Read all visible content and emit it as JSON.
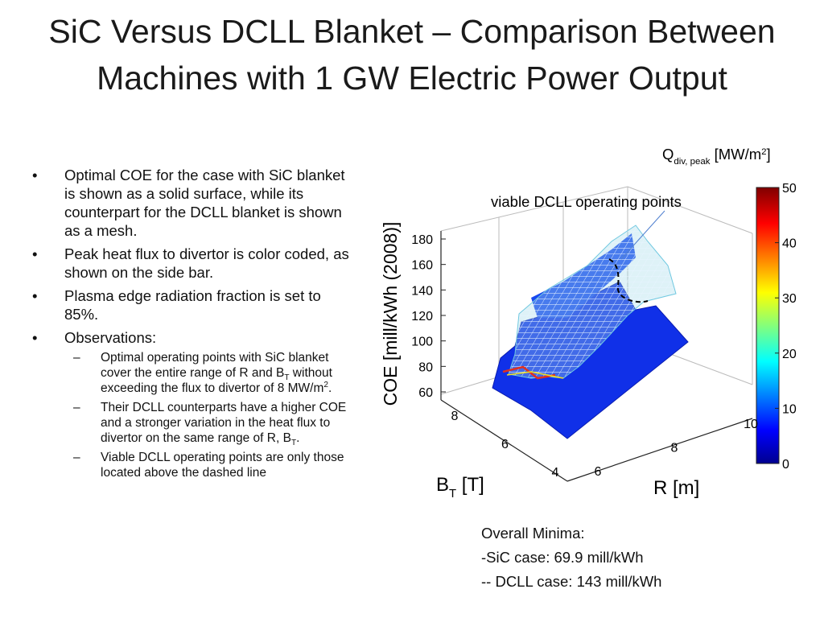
{
  "title": "SiC Versus DCLL Blanket – Comparison Between  Machines with 1 GW Electric Power Output",
  "bullets": [
    {
      "runs": [
        {
          "text": "Optimal COE for the case with SiC blanket is shown as a solid surface, while its counterpart for the DCLL blanket is shown as a mesh."
        }
      ]
    },
    {
      "runs": [
        {
          "text": "Peak heat flux to divertor is color coded, as shown on the side bar."
        }
      ]
    },
    {
      "runs": [
        {
          "text": "Plasma edge radiation fraction is set to 85%."
        }
      ]
    },
    {
      "runs": [
        {
          "text": "Observations:"
        }
      ],
      "sub_bullets": [
        {
          "runs": [
            {
              "text": "Optimal operating points with SiC blanket cover the entire range of R and B"
            },
            {
              "text": "T",
              "script": "sub"
            },
            {
              "text": " without exceeding the flux to divertor of 8 MW/m"
            },
            {
              "text": "2",
              "script": "sup"
            },
            {
              "text": "."
            }
          ]
        },
        {
          "runs": [
            {
              "text": "Their DCLL counterparts have a higher COE and a stronger variation in the heat flux to divertor on the same range of R, B"
            },
            {
              "text": "T",
              "script": "sub"
            },
            {
              "text": "."
            }
          ]
        },
        {
          "runs": [
            {
              "text": "Viable DCLL operating points are only those located above the dashed line"
            }
          ]
        }
      ]
    }
  ],
  "figure": {
    "z_label": "COE [mill/kWh (2008)]",
    "z_ticks": [
      60,
      80,
      100,
      120,
      140,
      160,
      180
    ],
    "y_label": [
      {
        "text": "B"
      },
      {
        "text": "T",
        "script": "sub"
      },
      {
        "text": " [T]"
      }
    ],
    "y_ticks": [
      4,
      6,
      8
    ],
    "x_label": "R [m]",
    "x_ticks": [
      6,
      8,
      10
    ],
    "annotation": "viable DCLL operating points",
    "colorbar": {
      "label": [
        {
          "text": "Q"
        },
        {
          "text": "div, peak",
          "script": "sub"
        },
        {
          "text": " [MW/m"
        },
        {
          "text": "2",
          "script": "sup"
        },
        {
          "text": "]"
        }
      ],
      "lim": [
        0,
        50
      ],
      "ticks": [
        0,
        10,
        20,
        30,
        40,
        50
      ]
    }
  },
  "minima": {
    "heading": "Overall Minima:",
    "lines": [
      "-SiC case: 69.9 mill/kWh",
      "-- DCLL case: 143 mill/kWh"
    ]
  }
}
